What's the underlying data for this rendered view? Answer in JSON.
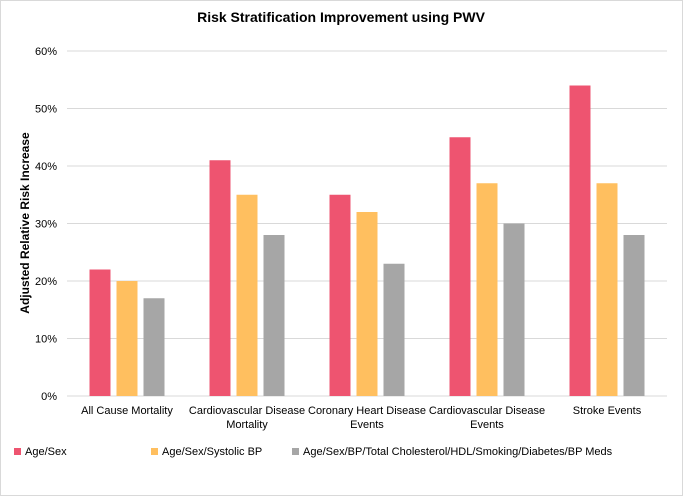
{
  "chart_data": {
    "type": "bar",
    "title": "Risk Stratification Improvement using PWV",
    "xlabel": "",
    "ylabel": "Adjusted Relative Risk Increase",
    "ylim": [
      0,
      60
    ],
    "y_ticks": [
      "0%",
      "10%",
      "20%",
      "30%",
      "40%",
      "50%",
      "60%"
    ],
    "y_tick_values": [
      0,
      10,
      20,
      30,
      40,
      50,
      60
    ],
    "grid": true,
    "legend_position": "bottom",
    "categories": [
      [
        "All Cause Mortality"
      ],
      [
        "Cardiovascular Disease",
        "Mortality"
      ],
      [
        "Coronary Heart Disease",
        "Events"
      ],
      [
        "Cardiovascular Disease",
        "Events"
      ],
      [
        "Stroke Events"
      ]
    ],
    "series": [
      {
        "name": "Age/Sex",
        "color": "#ee5470",
        "values": [
          22,
          41,
          35,
          45,
          54
        ]
      },
      {
        "name": "Age/Sex/Systolic BP",
        "color": "#ffbf5f",
        "values": [
          20,
          35,
          32,
          37,
          37
        ]
      },
      {
        "name": "Age/Sex/BP/Total Cholesterol/HDL/Smoking/Diabetes/BP Meds",
        "color": "#a6a6a6",
        "values": [
          17,
          28,
          23,
          30,
          28
        ]
      }
    ]
  }
}
